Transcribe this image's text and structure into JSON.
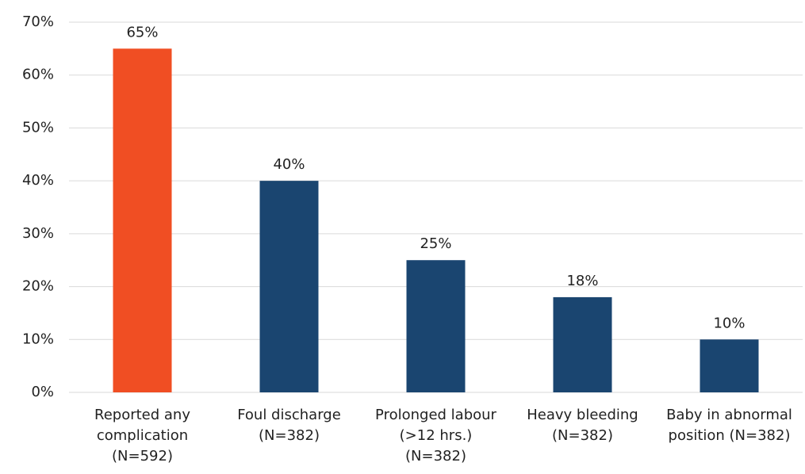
{
  "chart_data": {
    "type": "bar",
    "categories": [
      "Reported any complication (N=592)",
      "Foul discharge (N=382)",
      "Prolonged labour (>12 hrs.) (N=382)",
      "Heavy bleeding (N=382)",
      "Baby in abnormal position (N=382)"
    ],
    "values": [
      65,
      40,
      25,
      18,
      10
    ],
    "value_labels": [
      "65%",
      "40%",
      "25%",
      "18%",
      "10%"
    ],
    "colors": [
      "#f04e23",
      "#1a4570",
      "#1a4570",
      "#1a4570",
      "#1a4570"
    ],
    "ylim": [
      0,
      70
    ],
    "yticks": [
      {
        "value": 0,
        "label": "0%"
      },
      {
        "value": 10,
        "label": "10%"
      },
      {
        "value": 20,
        "label": "20%"
      },
      {
        "value": 30,
        "label": "30%"
      },
      {
        "value": 40,
        "label": "40%"
      },
      {
        "value": 50,
        "label": "50%"
      },
      {
        "value": 60,
        "label": "60%"
      },
      {
        "value": 70,
        "label": "70%"
      }
    ],
    "grid": true
  }
}
